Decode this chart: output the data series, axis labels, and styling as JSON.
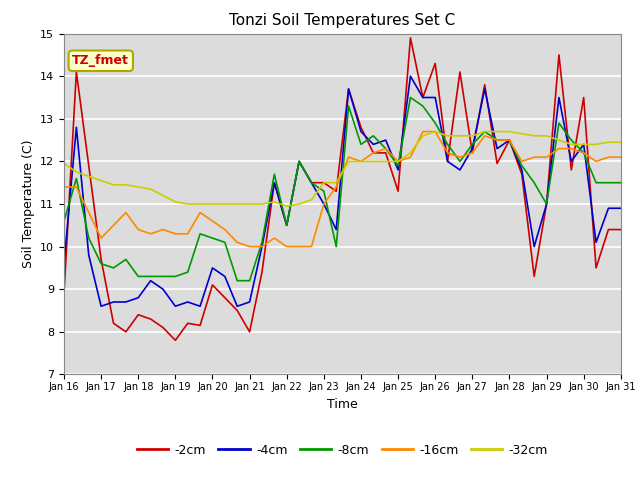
{
  "title": "Tonzi Soil Temperatures Set C",
  "xlabel": "Time",
  "ylabel": "Soil Temperature (C)",
  "ylim": [
    7.0,
    15.0
  ],
  "yticks": [
    7.0,
    8.0,
    9.0,
    10.0,
    11.0,
    12.0,
    13.0,
    14.0,
    15.0
  ],
  "bg_color": "#dcdcdc",
  "annotation_text": "TZ_fmet",
  "annotation_bg": "#ffffcc",
  "annotation_border": "#aaaa00",
  "series": {
    "-2cm": {
      "color": "#cc0000",
      "lw": 1.2
    },
    "-4cm": {
      "color": "#0000cc",
      "lw": 1.2
    },
    "-8cm": {
      "color": "#009900",
      "lw": 1.2
    },
    "-16cm": {
      "color": "#ff8800",
      "lw": 1.2
    },
    "-32cm": {
      "color": "#cccc00",
      "lw": 1.2
    }
  },
  "x_tick_labels": [
    "Jan 16",
    "Jan 17",
    "Jan 18",
    "Jan 19",
    "Jan 20",
    "Jan 21",
    "Jan 22",
    "Jan 23",
    "Jan 24",
    "Jan 25",
    "Jan 26",
    "Jan 27",
    "Jan 28",
    "Jan 29",
    "Jan 30",
    "Jan 31"
  ],
  "data_2cm": [
    8.9,
    14.1,
    11.9,
    9.7,
    8.2,
    8.0,
    8.4,
    8.3,
    8.1,
    7.8,
    8.2,
    8.15,
    9.1,
    8.8,
    8.5,
    8.0,
    9.4,
    11.5,
    10.5,
    12.0,
    11.5,
    11.5,
    11.3,
    13.7,
    12.8,
    12.2,
    12.2,
    11.3,
    14.9,
    13.5,
    14.3,
    12.0,
    14.1,
    12.2,
    13.8,
    11.95,
    12.5,
    11.7,
    9.3,
    11.0,
    14.5,
    11.8,
    13.5,
    9.5,
    10.4,
    10.4
  ],
  "data_4cm": [
    9.6,
    12.8,
    9.8,
    8.6,
    8.7,
    8.7,
    8.8,
    9.2,
    9.0,
    8.6,
    8.7,
    8.6,
    9.5,
    9.3,
    8.6,
    8.7,
    10.0,
    11.5,
    10.5,
    12.0,
    11.5,
    11.0,
    10.4,
    13.7,
    12.7,
    12.4,
    12.5,
    11.8,
    14.0,
    13.5,
    13.5,
    12.0,
    11.8,
    12.3,
    13.7,
    12.3,
    12.5,
    11.8,
    10.0,
    11.0,
    13.5,
    12.0,
    12.4,
    10.1,
    10.9,
    10.9
  ],
  "data_8cm": [
    10.6,
    11.6,
    10.2,
    9.6,
    9.5,
    9.7,
    9.3,
    9.3,
    9.3,
    9.3,
    9.4,
    10.3,
    10.2,
    10.1,
    9.2,
    9.2,
    10.1,
    11.7,
    10.5,
    12.0,
    11.5,
    11.3,
    10.0,
    13.3,
    12.4,
    12.6,
    12.3,
    11.9,
    13.5,
    13.3,
    12.9,
    12.4,
    12.0,
    12.4,
    12.7,
    12.5,
    12.5,
    11.9,
    11.5,
    11.0,
    12.9,
    12.5,
    12.2,
    11.5,
    11.5,
    11.5
  ],
  "data_16cm": [
    11.4,
    11.4,
    10.8,
    10.2,
    10.5,
    10.8,
    10.4,
    10.3,
    10.4,
    10.3,
    10.3,
    10.8,
    10.6,
    10.4,
    10.1,
    10.0,
    10.0,
    10.2,
    10.0,
    10.0,
    10.0,
    11.0,
    11.4,
    12.1,
    12.0,
    12.2,
    12.3,
    12.0,
    12.1,
    12.7,
    12.7,
    12.2,
    12.1,
    12.2,
    12.6,
    12.5,
    12.5,
    12.0,
    12.1,
    12.1,
    12.3,
    12.3,
    12.2,
    12.0,
    12.1,
    12.1
  ],
  "data_32cm": [
    11.95,
    11.75,
    11.65,
    11.55,
    11.45,
    11.45,
    11.4,
    11.35,
    11.2,
    11.05,
    11.0,
    11.0,
    11.0,
    11.0,
    11.0,
    11.0,
    11.0,
    11.05,
    10.95,
    11.0,
    11.1,
    11.5,
    11.5,
    12.0,
    12.0,
    12.0,
    12.0,
    12.0,
    12.2,
    12.6,
    12.7,
    12.6,
    12.6,
    12.6,
    12.7,
    12.7,
    12.7,
    12.65,
    12.6,
    12.6,
    12.5,
    12.4,
    12.4,
    12.4,
    12.45,
    12.45
  ],
  "figsize": [
    6.4,
    4.8
  ],
  "dpi": 100
}
